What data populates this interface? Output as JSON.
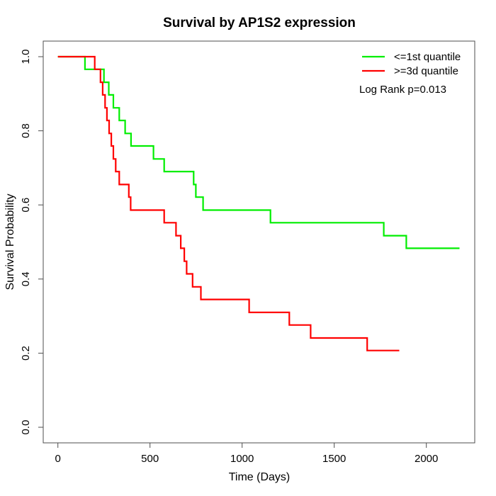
{
  "chart_data": {
    "type": "line",
    "subtype": "kaplan-meier-step",
    "title": "Survival by AP1S2 expression",
    "xlabel": "Time (Days)",
    "ylabel": "Survival Probability",
    "annotation": "Log Rank p=0.013",
    "x_tick_labels": [
      "0",
      "500",
      "1000",
      "1500",
      "2000"
    ],
    "y_tick_labels": [
      "0.0",
      "0.2",
      "0.4",
      "0.6",
      "0.8",
      "1.0"
    ],
    "xlim": [
      0,
      2200
    ],
    "ylim": [
      0.0,
      1.0
    ],
    "grid": false,
    "legend_position": "top-right",
    "series": [
      {
        "name": "<=1st quantile",
        "color": "#00ee00",
        "start": {
          "t": 0,
          "s": 1.0
        },
        "steps": [
          [
            147,
            0.966
          ],
          [
            250,
            0.931
          ],
          [
            276,
            0.897
          ],
          [
            301,
            0.862
          ],
          [
            333,
            0.828
          ],
          [
            365,
            0.793
          ],
          [
            397,
            0.759
          ],
          [
            519,
            0.724
          ],
          [
            577,
            0.69
          ],
          [
            737,
            0.655
          ],
          [
            749,
            0.621
          ],
          [
            788,
            0.586
          ],
          [
            1154,
            0.552
          ],
          [
            1769,
            0.517
          ],
          [
            1891,
            0.483
          ]
        ],
        "end_t": 2180,
        "end_s": 0.483
      },
      {
        "name": ">=3d quantile",
        "color": "#ff0000",
        "start": {
          "t": 0,
          "s": 1.0
        },
        "steps": [
          [
            200,
            0.966
          ],
          [
            231,
            0.931
          ],
          [
            243,
            0.897
          ],
          [
            256,
            0.862
          ],
          [
            266,
            0.828
          ],
          [
            278,
            0.793
          ],
          [
            290,
            0.759
          ],
          [
            301,
            0.724
          ],
          [
            314,
            0.69
          ],
          [
            333,
            0.655
          ],
          [
            385,
            0.621
          ],
          [
            395,
            0.586
          ],
          [
            577,
            0.552
          ],
          [
            641,
            0.517
          ],
          [
            667,
            0.483
          ],
          [
            686,
            0.448
          ],
          [
            699,
            0.414
          ],
          [
            731,
            0.379
          ],
          [
            776,
            0.345
          ],
          [
            1038,
            0.31
          ],
          [
            1256,
            0.276
          ],
          [
            1372,
            0.241
          ],
          [
            1679,
            0.207
          ]
        ],
        "end_t": 1853,
        "end_s": 0.207
      }
    ]
  }
}
